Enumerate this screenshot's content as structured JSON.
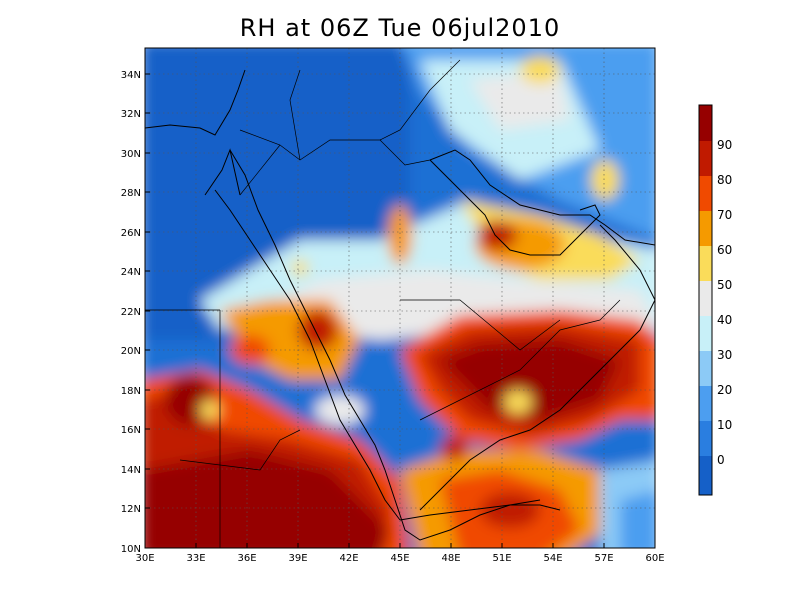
{
  "title": "RH at 06Z Tue 06jul2010",
  "map": {
    "lon_range": [
      30,
      60
    ],
    "lat_range": [
      10,
      35
    ],
    "lat_ticks": [
      "34N",
      "32N",
      "30N",
      "28N",
      "26N",
      "24N",
      "22N",
      "20N",
      "18N",
      "16N",
      "14N",
      "12N",
      "10N"
    ],
    "lon_ticks": [
      "30E",
      "33E",
      "36E",
      "39E",
      "42E",
      "45E",
      "48E",
      "51E",
      "54E",
      "57E",
      "60E"
    ],
    "grid": "dotted"
  },
  "colorbar": {
    "labels": [
      "0",
      "10",
      "20",
      "30",
      "40",
      "50",
      "60",
      "70",
      "80",
      "90"
    ],
    "colors": [
      "#1560c8",
      "#2a7ee0",
      "#4c9ef0",
      "#8ccaf6",
      "#c8f0f8",
      "#eaeaea",
      "#fadc5a",
      "#f59a00",
      "#f04a00",
      "#c01a00",
      "#960000"
    ]
  }
}
